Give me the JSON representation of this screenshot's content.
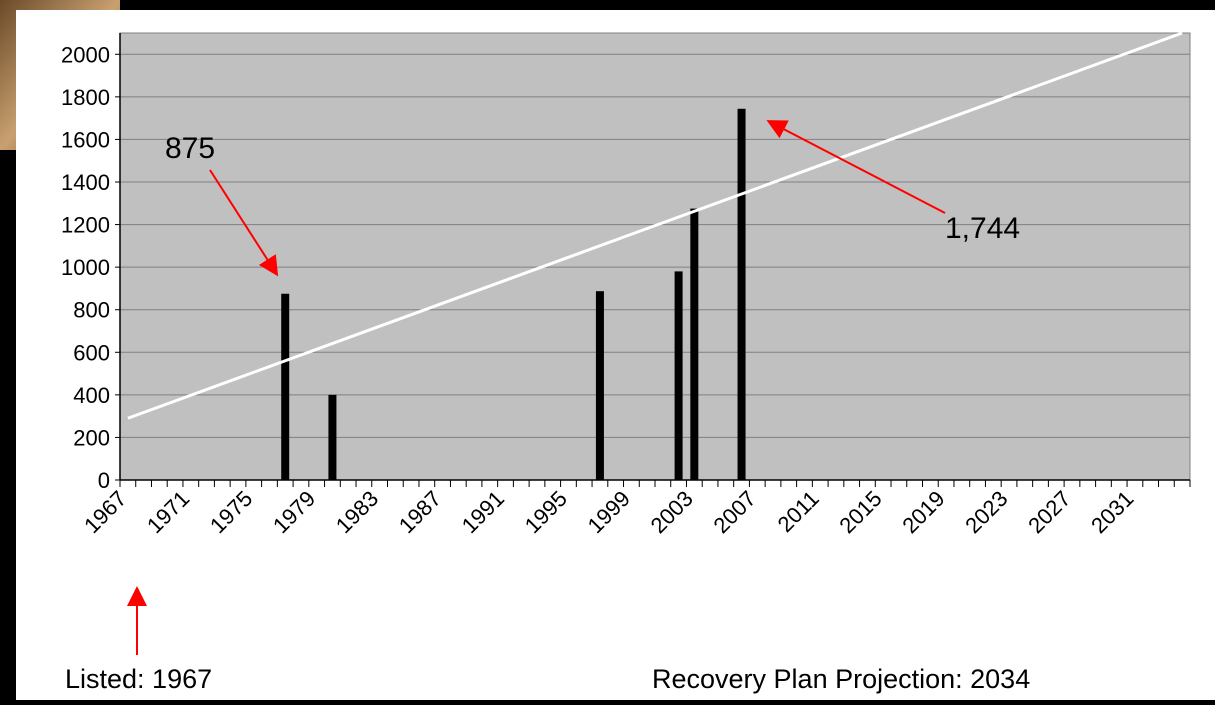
{
  "chart_data": {
    "type": "bar",
    "categories": [
      "1967",
      null,
      null,
      null,
      "1971",
      null,
      null,
      null,
      "1975",
      null,
      null,
      null,
      "1979",
      null,
      null,
      null,
      "1983",
      null,
      null,
      null,
      "1987",
      null,
      null,
      null,
      "1991",
      null,
      null,
      null,
      "1995",
      null,
      null,
      null,
      "1999",
      null,
      null,
      null,
      "2003",
      null,
      null,
      null,
      "2007",
      null,
      null,
      null,
      "2011",
      null,
      null,
      null,
      "2015",
      null,
      null,
      null,
      "2019",
      null,
      null,
      null,
      "2023",
      null,
      null,
      null,
      "2027",
      null,
      null,
      null,
      "2031",
      null,
      null,
      null
    ],
    "series": [
      {
        "type": "bar",
        "color": "#000000",
        "values": [
          null,
          null,
          null,
          null,
          null,
          null,
          null,
          null,
          null,
          null,
          875,
          null,
          null,
          400,
          null,
          null,
          null,
          null,
          null,
          null,
          null,
          null,
          null,
          null,
          null,
          null,
          null,
          null,
          null,
          null,
          887,
          null,
          null,
          null,
          null,
          980,
          1275,
          null,
          null,
          1744,
          null,
          null,
          null,
          null,
          null,
          null,
          null,
          null,
          null,
          null,
          null,
          null,
          null,
          null,
          null,
          null,
          null,
          null,
          null,
          null,
          null,
          null,
          null,
          null,
          null,
          null,
          null,
          null
        ]
      },
      {
        "type": "line",
        "color": "#ffffff",
        "x": [
          1967,
          2034
        ],
        "values": [
          290,
          2100
        ]
      }
    ],
    "ylim": [
      0,
      2100
    ],
    "yticks": [
      0,
      200,
      400,
      600,
      800,
      1000,
      1200,
      1400,
      1600,
      1800,
      2000
    ],
    "grid": true,
    "plot_color": "#c0c0c0",
    "annotations": [
      "875",
      "1,744",
      "Listed: 1967",
      "Recovery Plan Projection: 2034"
    ]
  }
}
